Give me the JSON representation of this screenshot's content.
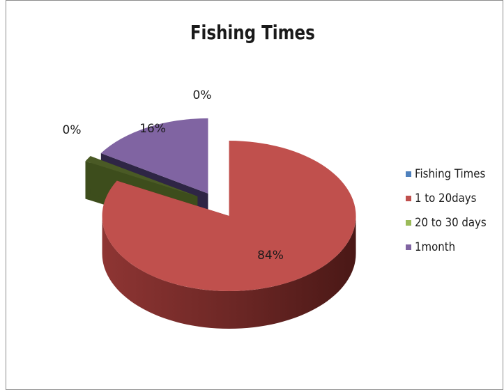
{
  "chart_data": {
    "type": "pie",
    "title": "Fishing Times",
    "categories": [
      "Fishing Times",
      "1 to 20days",
      "20 to 30 days",
      "1month"
    ],
    "values": [
      0,
      84,
      0,
      16
    ],
    "data_labels": [
      "0%",
      "84%",
      "0%",
      "16%"
    ],
    "exploded": true,
    "three_d": true,
    "legend_position": "right",
    "colors": [
      "#4F81BD",
      "#C0504D",
      "#9BBB59",
      "#8064A2"
    ],
    "side_colors": [
      "#2f4d73",
      "#5a1f1d",
      "#3d4d1c",
      "#2e2545"
    ],
    "label_colors": {
      "green_slice_face": "#4a5a25"
    }
  }
}
